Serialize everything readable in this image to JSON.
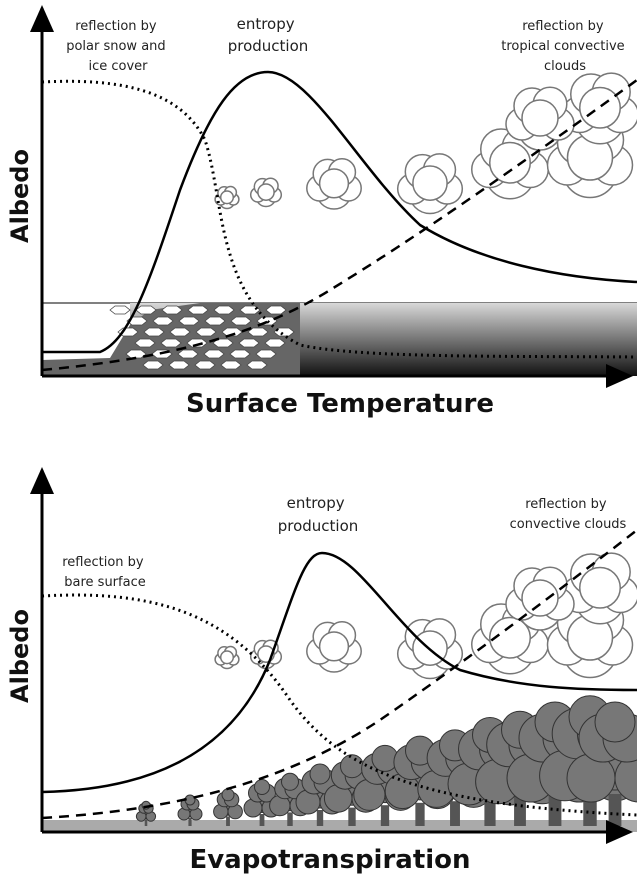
{
  "panels": [
    {
      "y_label": "Albedo",
      "x_label": "Surface Temperature",
      "annotations": [
        {
          "lines": [
            "reflection by",
            "polar snow and",
            "ice cover"
          ]
        },
        {
          "lines": [
            "entropy",
            "production"
          ]
        },
        {
          "lines": [
            "reflection by",
            "tropical convective",
            "clouds"
          ]
        }
      ]
    },
    {
      "y_label": "Albedo",
      "x_label": "Evapotranspiration",
      "annotations": [
        {
          "lines": [
            "entropy",
            "production"
          ]
        },
        {
          "lines": [
            "reflection by",
            "convective clouds"
          ]
        },
        {
          "lines": [
            "reflection by",
            "bare surface"
          ]
        }
      ]
    }
  ]
}
